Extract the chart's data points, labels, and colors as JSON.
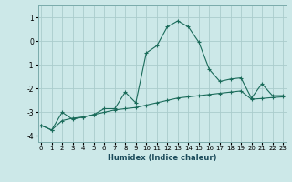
{
  "xlabel": "Humidex (Indice chaleur)",
  "ylabel": "",
  "background_color": "#cce8e8",
  "grid_color": "#aacccc",
  "line_color": "#1a6b5a",
  "x": [
    0,
    1,
    2,
    3,
    4,
    5,
    6,
    7,
    8,
    9,
    10,
    11,
    12,
    13,
    14,
    15,
    16,
    17,
    18,
    19,
    20,
    21,
    22,
    23
  ],
  "y_curve": [
    -3.55,
    -3.75,
    -3.0,
    -3.3,
    -3.2,
    -3.1,
    -2.85,
    -2.85,
    -2.15,
    -2.6,
    -0.5,
    -0.2,
    0.6,
    0.85,
    0.6,
    -0.05,
    -1.2,
    -1.7,
    -1.6,
    -1.55,
    -2.4,
    -1.8,
    -2.3,
    -2.3
  ],
  "y_line": [
    -3.55,
    -3.75,
    -3.35,
    -3.25,
    -3.2,
    -3.1,
    -3.0,
    -2.9,
    -2.85,
    -2.8,
    -2.7,
    -2.6,
    -2.5,
    -2.4,
    -2.35,
    -2.3,
    -2.25,
    -2.2,
    -2.15,
    -2.1,
    -2.45,
    -2.42,
    -2.38,
    -2.35
  ],
  "ylim": [
    -4.25,
    1.5
  ],
  "xlim": [
    -0.3,
    23.3
  ],
  "yticks": [
    -4,
    -3,
    -2,
    -1,
    0,
    1
  ],
  "xticks": [
    0,
    1,
    2,
    3,
    4,
    5,
    6,
    7,
    8,
    9,
    10,
    11,
    12,
    13,
    14,
    15,
    16,
    17,
    18,
    19,
    20,
    21,
    22,
    23
  ]
}
